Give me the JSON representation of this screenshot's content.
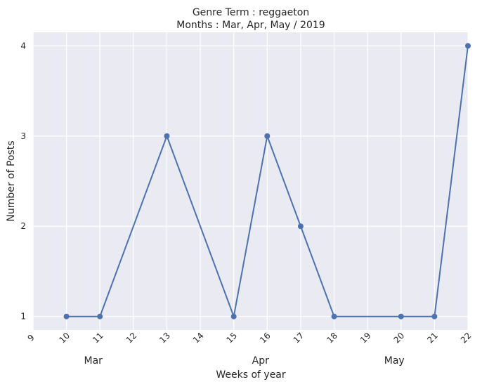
{
  "chart_data": {
    "type": "line",
    "title_line1": "Genre Term : reggaeton",
    "title_line2": "Months : Mar, Apr, May / 2019",
    "xlabel": "Weeks of year",
    "ylabel": "Number of Posts",
    "x_ticks": [
      "9",
      "10",
      "11",
      "12",
      "13",
      "14",
      "15",
      "16",
      "17",
      "18",
      "19",
      "20",
      "21",
      "22"
    ],
    "x_tick_values": [
      9,
      10,
      11,
      12,
      13,
      14,
      15,
      16,
      17,
      18,
      19,
      20,
      21,
      22
    ],
    "y_ticks": [
      1,
      2,
      3,
      4
    ],
    "xlim": [
      9,
      22
    ],
    "ylim": [
      0.85,
      4.15
    ],
    "month_labels": [
      {
        "label": "Mar",
        "week": 10
      },
      {
        "label": "Apr",
        "week": 15
      },
      {
        "label": "May",
        "week": 19
      }
    ],
    "grid": true,
    "colors": {
      "background": "#eaeaf2",
      "grid": "#ffffff",
      "line": "#4c72b0",
      "marker": "#4c72b0"
    },
    "series": [
      {
        "x": [
          10,
          11,
          13,
          15,
          16,
          17,
          18,
          20,
          21,
          22
        ],
        "y": [
          1,
          1,
          3,
          1,
          3,
          2,
          1,
          1,
          1,
          4
        ]
      }
    ]
  }
}
